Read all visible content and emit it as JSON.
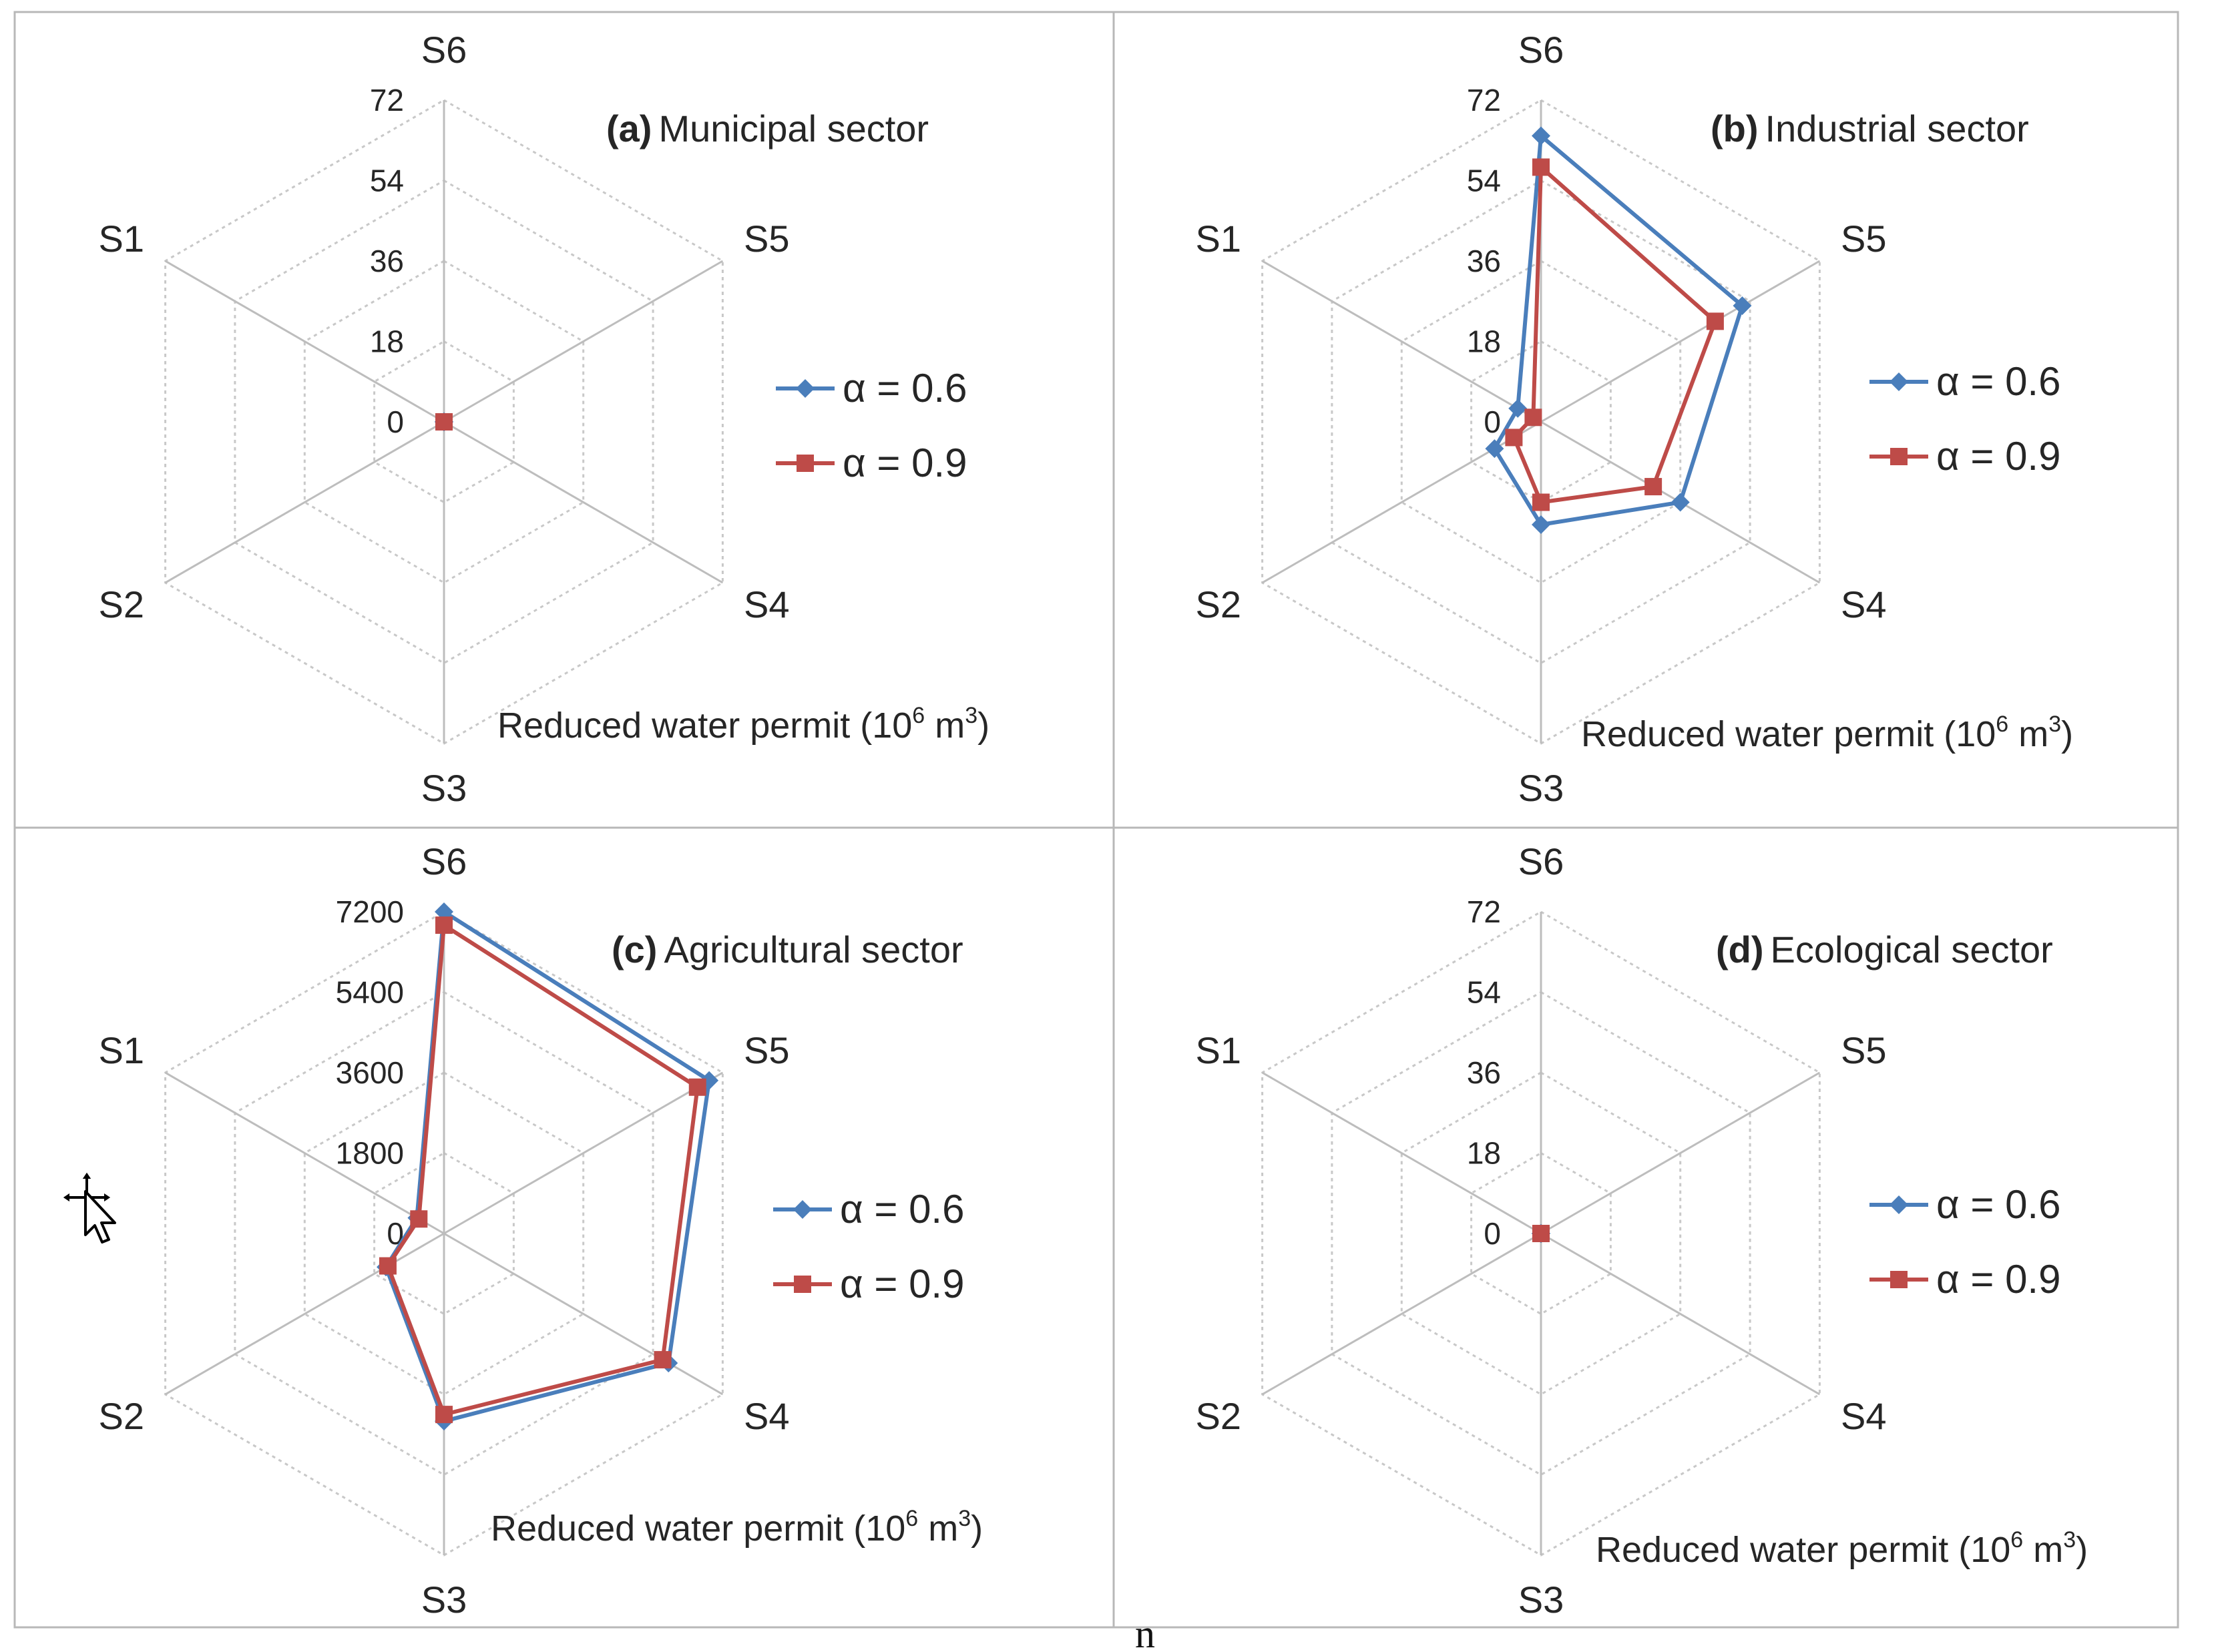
{
  "figure": {
    "footer_glyph": "n"
  },
  "colors": {
    "alpha_06": "#4a7ebb",
    "alpha_09": "#be4b48"
  },
  "chart_data": [
    {
      "type": "radar",
      "id": "municipal",
      "title_bold": "(a)",
      "title_rest": "Municipal sector",
      "xlabel": "Reduced water permit (10",
      "xlabel_sup": "6",
      "xlabel_unit": " m",
      "xlabel_unit_sup": "3",
      "xlabel_close": ")",
      "categories": [
        "S6",
        "S5",
        "S4",
        "S3",
        "S2",
        "S1"
      ],
      "ticks": [
        "0",
        "18",
        "36",
        "54",
        "72"
      ],
      "range": [
        0,
        72
      ],
      "series": [
        {
          "name": "α = 0.6",
          "marker": "diamond",
          "values": [
            0,
            0,
            0,
            0,
            0,
            0
          ]
        },
        {
          "name": "α = 0.9",
          "marker": "square",
          "values": [
            0,
            0,
            0,
            0,
            0,
            0
          ]
        }
      ]
    },
    {
      "type": "radar",
      "id": "industrial",
      "title_bold": "(b)",
      "title_rest": "Industrial sector",
      "xlabel": "Reduced water permit (10",
      "xlabel_sup": "6",
      "xlabel_unit": " m",
      "xlabel_unit_sup": "3",
      "xlabel_close": ")",
      "categories": [
        "S6",
        "S5",
        "S4",
        "S3",
        "S2",
        "S1"
      ],
      "ticks": [
        "0",
        "18",
        "36",
        "54",
        "72"
      ],
      "range": [
        0,
        72
      ],
      "series": [
        {
          "name": "α = 0.6",
          "marker": "diamond",
          "values": [
            64,
            52,
            36,
            23,
            12,
            6
          ]
        },
        {
          "name": "α = 0.9",
          "marker": "square",
          "values": [
            57,
            45,
            29,
            18,
            7,
            2
          ]
        }
      ]
    },
    {
      "type": "radar",
      "id": "agricultural",
      "title_bold": "(c)",
      "title_rest": "Agricultural sector",
      "xlabel": "Reduced water permit (10",
      "xlabel_sup": "6",
      "xlabel_unit": " m",
      "xlabel_unit_sup": "3",
      "xlabel_close": ")",
      "categories": [
        "S6",
        "S5",
        "S4",
        "S3",
        "S2",
        "S1"
      ],
      "ticks": [
        "0",
        "1800",
        "3600",
        "5400",
        "7200"
      ],
      "range": [
        0,
        7200
      ],
      "series": [
        {
          "name": "α = 0.6",
          "marker": "diamond",
          "values": [
            7200,
            6850,
            5800,
            4200,
            1500,
            700
          ]
        },
        {
          "name": "α = 0.9",
          "marker": "square",
          "values": [
            6900,
            6550,
            5650,
            4050,
            1450,
            650
          ]
        }
      ]
    },
    {
      "type": "radar",
      "id": "ecological",
      "title_bold": "(d)",
      "title_rest": "Ecological sector",
      "xlabel": "Reduced water permit (10",
      "xlabel_sup": "6",
      "xlabel_unit": " m",
      "xlabel_unit_sup": "3",
      "xlabel_close": ")",
      "categories": [
        "S6",
        "S5",
        "S4",
        "S3",
        "S2",
        "S1"
      ],
      "ticks": [
        "0",
        "18",
        "36",
        "54",
        "72"
      ],
      "range": [
        0,
        72
      ],
      "series": [
        {
          "name": "α = 0.6",
          "marker": "diamond",
          "values": [
            0,
            0,
            0,
            0,
            0,
            0
          ]
        },
        {
          "name": "α = 0.9",
          "marker": "square",
          "values": [
            0,
            0,
            0,
            0,
            0,
            0
          ]
        }
      ]
    }
  ]
}
